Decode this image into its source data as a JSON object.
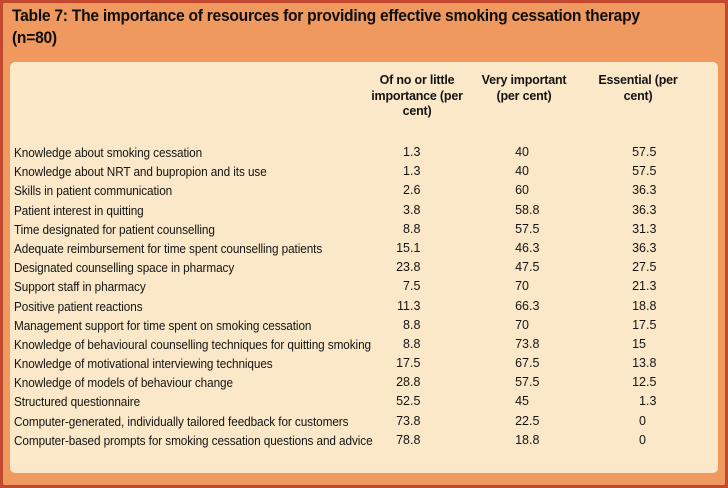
{
  "title": {
    "line1": "Table 7: The importance of resources for providing effective smoking cessation therapy",
    "line2": "(n=80)"
  },
  "columns": [
    {
      "label": "Of no or little importance (per cent)"
    },
    {
      "label": "Very important (per cent)"
    },
    {
      "label": "Essential (per cent)"
    }
  ],
  "rows": [
    {
      "label": "Knowledge about smoking cessation",
      "values": [
        "1.3",
        "40",
        "57.5"
      ]
    },
    {
      "label": "Knowledge about NRT and bupropion and its use",
      "values": [
        "1.3",
        "40",
        "57.5"
      ]
    },
    {
      "label": "Skills in patient communication",
      "values": [
        "2.6",
        "60",
        "36.3"
      ]
    },
    {
      "label": "Patient interest in quitting",
      "values": [
        "3.8",
        "58.8",
        "36.3"
      ]
    },
    {
      "label": "Time designated for patient counselling",
      "values": [
        "8.8",
        "57.5",
        "31.3"
      ]
    },
    {
      "label": "Adequate reimbursement for time spent counselling patients",
      "values": [
        "15.1",
        "46.3",
        "36.3"
      ]
    },
    {
      "label": "Designated counselling space in pharmacy",
      "values": [
        "23.8",
        "47.5",
        "27.5"
      ]
    },
    {
      "label": "Support staff in pharmacy",
      "values": [
        "7.5",
        "70",
        "21.3"
      ]
    },
    {
      "label": "Positive patient reactions",
      "values": [
        "11.3",
        "66.3",
        "18.8"
      ]
    },
    {
      "label": "Management support for time spent on smoking cessation",
      "values": [
        "8.8",
        "70",
        "17.5"
      ]
    },
    {
      "label": "Knowledge of behavioural counselling techniques for quitting smoking",
      "values": [
        "8.8",
        "73.8",
        "15"
      ]
    },
    {
      "label": "Knowledge of motivational interviewing techniques",
      "values": [
        "17.5",
        "67.5",
        "13.8"
      ]
    },
    {
      "label": "Knowledge of models of behaviour change",
      "values": [
        "28.8",
        "57.5",
        "12.5"
      ]
    },
    {
      "label": "Structured questionnaire",
      "values": [
        "52.5",
        "45",
        "1.3"
      ]
    },
    {
      "label": "Computer-generated, individually tailored feedback for customers",
      "values": [
        "73.8",
        "22.5",
        "0"
      ]
    },
    {
      "label": "Computer-based prompts for smoking cessation questions and advice",
      "values": [
        "78.8",
        "18.8",
        "0"
      ]
    }
  ],
  "colors": {
    "border_red": "#c2492f",
    "frame_orange": "#f0995f",
    "sheet_cream": "#fbe8c8",
    "text": "#141414"
  },
  "chart_data": {
    "type": "table",
    "title": "Table 7: The importance of resources for providing effective smoking cessation therapy (n=80)",
    "categories": [
      "Knowledge about smoking cessation",
      "Knowledge about NRT and bupropion and its use",
      "Skills in patient communication",
      "Patient interest in quitting",
      "Time designated for patient counselling",
      "Adequate reimbursement for time spent counselling patients",
      "Designated counselling space in pharmacy",
      "Support staff in pharmacy",
      "Positive patient reactions",
      "Management support for time spent on smoking cessation",
      "Knowledge of behavioural counselling techniques for quitting smoking",
      "Knowledge of motivational interviewing techniques",
      "Knowledge of models of behaviour change",
      "Structured questionnaire",
      "Computer-generated, individually tailored feedback for customers",
      "Computer-based prompts for smoking cessation questions and advice"
    ],
    "series": [
      {
        "name": "Of no or little importance (per cent)",
        "values": [
          1.3,
          1.3,
          2.6,
          3.8,
          8.8,
          15.1,
          23.8,
          7.5,
          11.3,
          8.8,
          8.8,
          17.5,
          28.8,
          52.5,
          73.8,
          78.8
        ]
      },
      {
        "name": "Very important (per cent)",
        "values": [
          40,
          40,
          60,
          58.8,
          57.5,
          46.3,
          47.5,
          70,
          66.3,
          70,
          73.8,
          67.5,
          57.5,
          45,
          22.5,
          18.8
        ]
      },
      {
        "name": "Essential (per cent)",
        "values": [
          57.5,
          57.5,
          36.3,
          36.3,
          31.3,
          36.3,
          27.5,
          21.3,
          18.8,
          17.5,
          15,
          13.8,
          12.5,
          1.3,
          0,
          0
        ]
      }
    ]
  }
}
